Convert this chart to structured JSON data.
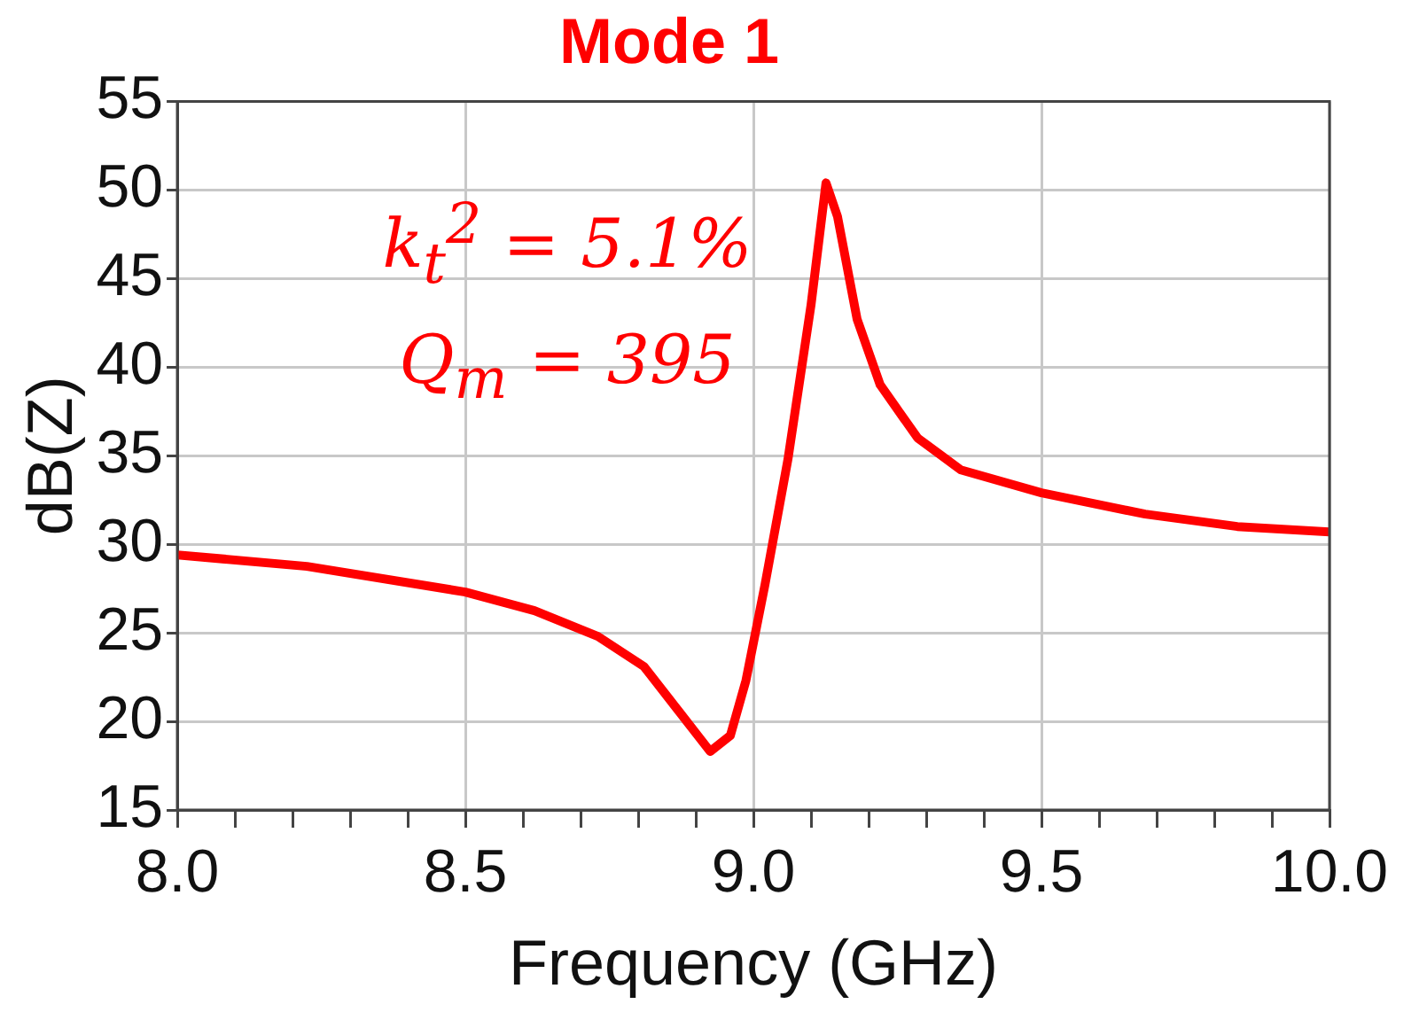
{
  "chart_data": {
    "type": "line",
    "title": "Mode 1",
    "xlabel": "Frequency (GHz)",
    "ylabel": "dB(Z)",
    "annotations": [
      "k$_{t}$$^{2}$ = 5.1%",
      "Q$_{m}$ = 395"
    ],
    "series": [
      {
        "color": "#ff0000",
        "x": [
          8.0,
          8.225,
          8.5,
          8.62,
          8.73,
          8.81,
          8.87,
          8.925,
          8.96,
          8.987,
          9.02,
          9.06,
          9.1,
          9.126,
          9.146,
          9.18,
          9.22,
          9.285,
          9.36,
          9.5,
          9.68,
          9.84,
          10.0
        ],
        "values": [
          29.4,
          28.75,
          27.3,
          26.25,
          24.8,
          23.1,
          20.6,
          18.3,
          19.2,
          22.3,
          27.7,
          34.8,
          43.5,
          50.4,
          48.5,
          42.7,
          39.0,
          36.0,
          34.2,
          32.9,
          31.7,
          31.0,
          30.7
        ]
      }
    ],
    "xlim": [
      8.0,
      10.0
    ],
    "xticks": [
      {
        "value": 8.0,
        "label": "8.0"
      },
      {
        "value": 8.1,
        "label": null
      },
      {
        "value": 8.2,
        "label": null
      },
      {
        "value": 8.3,
        "label": null
      },
      {
        "value": 8.4,
        "label": null
      },
      {
        "value": 8.5,
        "label": "8.5"
      },
      {
        "value": 8.6,
        "label": null
      },
      {
        "value": 8.7,
        "label": null
      },
      {
        "value": 8.8,
        "label": null
      },
      {
        "value": 8.9,
        "label": null
      },
      {
        "value": 9.0,
        "label": "9.0"
      },
      {
        "value": 9.1,
        "label": null
      },
      {
        "value": 9.2,
        "label": null
      },
      {
        "value": 9.3,
        "label": null
      },
      {
        "value": 9.4,
        "label": null
      },
      {
        "value": 9.5,
        "label": "9.5"
      },
      {
        "value": 9.6,
        "label": null
      },
      {
        "value": 9.7,
        "label": null
      },
      {
        "value": 9.8,
        "label": null
      },
      {
        "value": 9.9,
        "label": null
      },
      {
        "value": 10.0,
        "label": "10.0"
      }
    ],
    "ylim": [
      15,
      55
    ],
    "yticks": [
      15,
      20,
      25,
      30,
      35,
      40,
      45,
      50,
      55
    ],
    "grid": true,
    "legend": false,
    "marker": "none",
    "line_style": "solid"
  }
}
